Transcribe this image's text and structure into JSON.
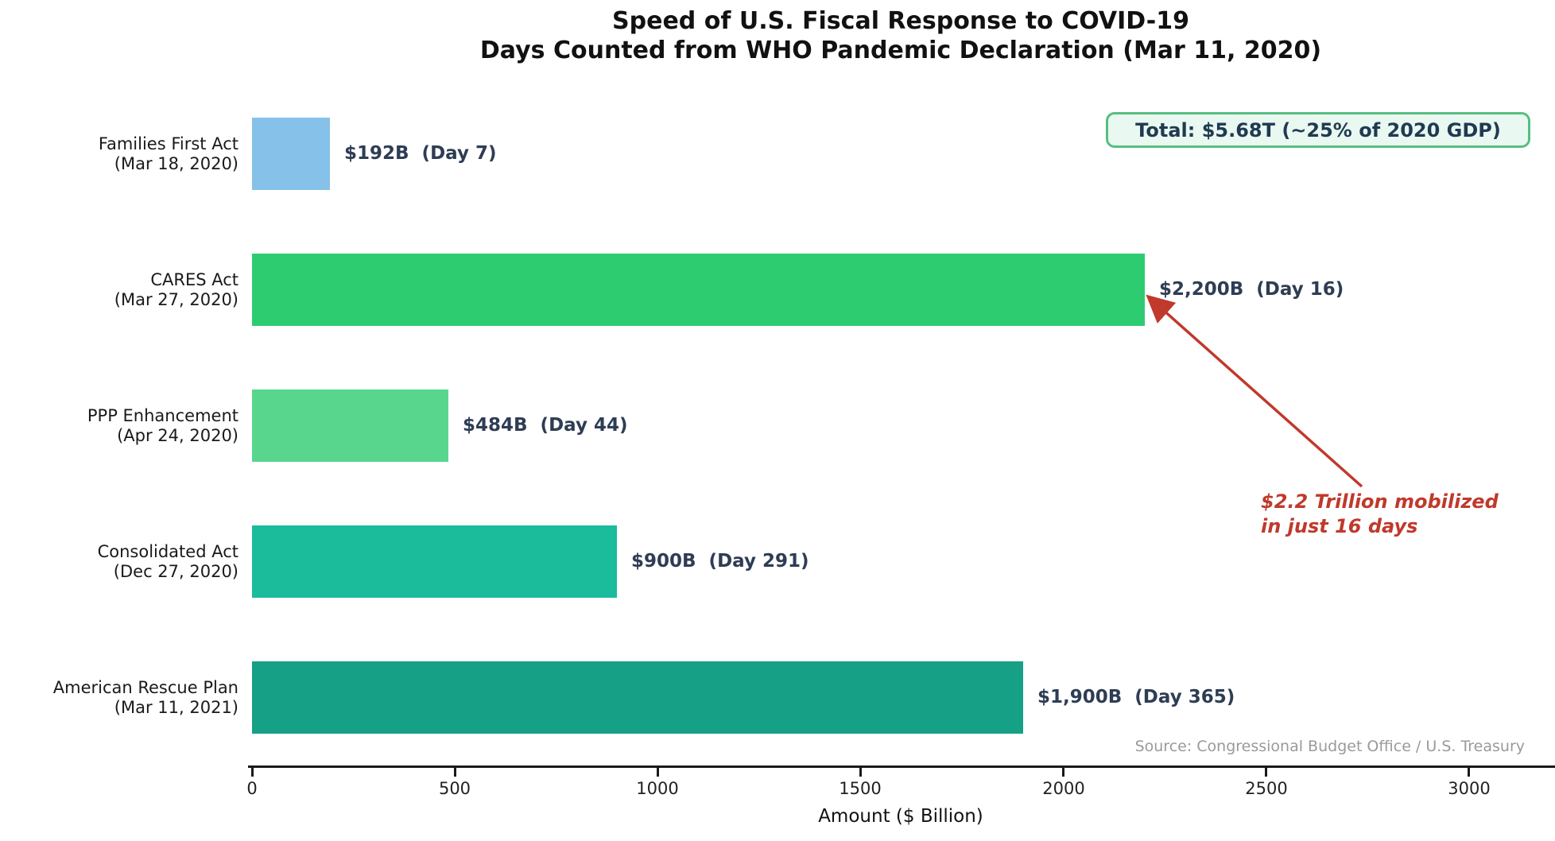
{
  "chart_data": {
    "type": "bar",
    "orientation": "horizontal",
    "title": "Speed of U.S. Fiscal Response to COVID-19",
    "subtitle": "Days Counted from WHO Pandemic Declaration (Mar 11, 2020)",
    "xlabel": "Amount ($ Billion)",
    "xlim": [
      0,
      3200
    ],
    "xticks": [
      0,
      500,
      1000,
      1500,
      2000,
      2500,
      3000
    ],
    "grid": false,
    "categories": [
      {
        "name": "Families First Act",
        "date": "(Mar 18, 2020)",
        "value": 192,
        "day": 7,
        "value_label": "$192B  (Day 7)",
        "color": "#85c1e9"
      },
      {
        "name": "CARES Act",
        "date": "(Mar 27, 2020)",
        "value": 2200,
        "day": 16,
        "value_label": "$2,200B  (Day 16)",
        "color": "#2ecc71"
      },
      {
        "name": "PPP Enhancement",
        "date": "(Apr 24, 2020)",
        "value": 484,
        "day": 44,
        "value_label": "$484B  (Day 44)",
        "color": "#58d68d"
      },
      {
        "name": "Consolidated Act",
        "date": "(Dec 27, 2020)",
        "value": 900,
        "day": 291,
        "value_label": "$900B  (Day 291)",
        "color": "#1abc9c"
      },
      {
        "name": "American Rescue Plan",
        "date": "(Mar 11, 2021)",
        "value": 1900,
        "day": 365,
        "value_label": "$1,900B  (Day 365)",
        "color": "#16a085"
      }
    ],
    "total_box": {
      "text": "Total: $5.68T (~25% of 2020 GDP)",
      "fill": "#e9f8f0",
      "border_color": "#57be82",
      "text_color": "#1f3a52"
    },
    "annotation": {
      "line1": "$2.2 Trillion mobilized",
      "line2": "in just 16 days",
      "color": "#c0392b",
      "target_category": "CARES Act"
    },
    "source": "Source: Congressional Budget Office / U.S. Treasury",
    "value_label_color": "#2e3d54",
    "category_label_color": "#1a1a1a",
    "axis_color": "#1a1a1a"
  }
}
